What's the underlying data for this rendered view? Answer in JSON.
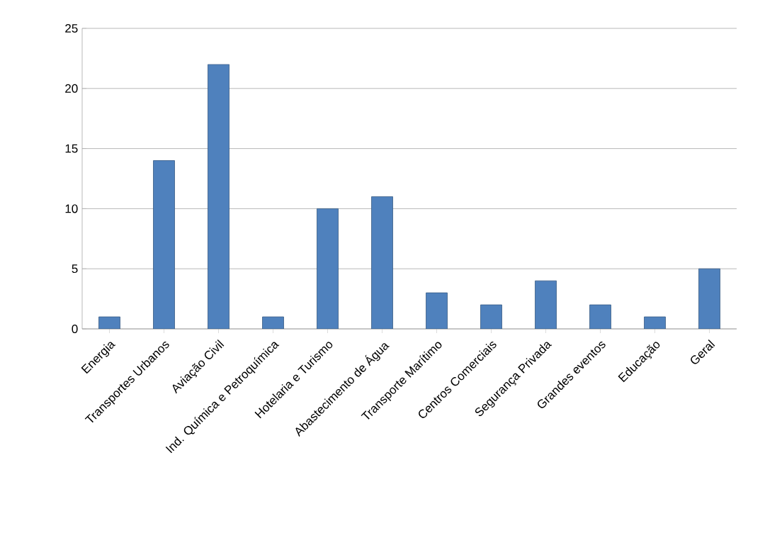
{
  "chart_data": {
    "type": "bar",
    "categories": [
      "Energia",
      "Transportes Urbanos",
      "Aviação Civil",
      "Ind. Química e Petroquímica",
      "Hotelaria e Turismo",
      "Abastecimento de Água",
      "Transporte Marítimo",
      "Centros Comerciais",
      "Segurança Privada",
      "Grandes eventos",
      "Educação",
      "Geral"
    ],
    "values": [
      1,
      14,
      22,
      1,
      10,
      11,
      3,
      2,
      4,
      2,
      1,
      5
    ],
    "color": "#4f81bd",
    "ylim": [
      0,
      25
    ],
    "yticks": [
      0,
      5,
      10,
      15,
      20,
      25
    ],
    "grid": "y"
  }
}
